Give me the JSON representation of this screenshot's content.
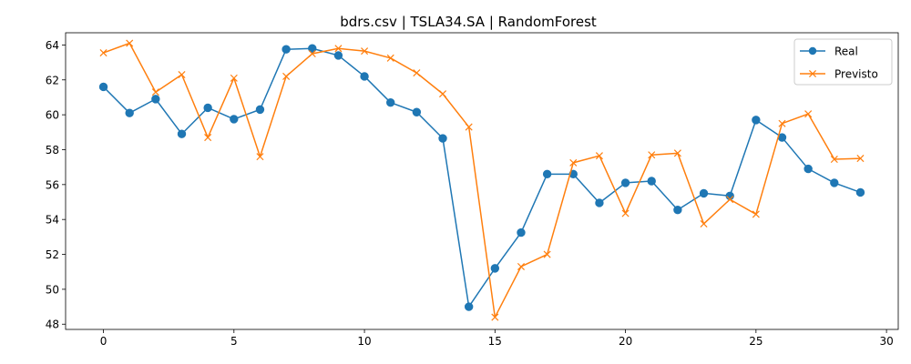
{
  "chart_data": {
    "type": "line",
    "title": "bdrs.csv | TSLA34.SA | RandomForest",
    "xlabel": "",
    "ylabel": "",
    "xlim": [
      -1.45,
      30.45
    ],
    "ylim": [
      47.7,
      64.7
    ],
    "xticks": [
      0,
      5,
      10,
      15,
      20,
      25,
      30
    ],
    "yticks": [
      48,
      50,
      52,
      54,
      56,
      58,
      60,
      62,
      64
    ],
    "grid": false,
    "legend_position": "top-right",
    "x": [
      0,
      1,
      2,
      3,
      4,
      5,
      6,
      7,
      8,
      9,
      10,
      11,
      12,
      13,
      14,
      15,
      16,
      17,
      18,
      19,
      20,
      21,
      22,
      23,
      24,
      25,
      26,
      27,
      28,
      29
    ],
    "series": [
      {
        "name": "Real",
        "color": "#1f77b4",
        "marker": "circle",
        "values": [
          61.6,
          60.1,
          60.9,
          58.9,
          60.4,
          59.75,
          60.3,
          63.75,
          63.8,
          63.4,
          62.2,
          60.7,
          60.15,
          58.65,
          49.0,
          51.2,
          53.25,
          56.6,
          56.6,
          54.95,
          56.1,
          56.2,
          54.55,
          55.5,
          55.35,
          59.7,
          58.7,
          56.9,
          56.1,
          55.55
        ]
      },
      {
        "name": "Previsto",
        "color": "#ff7f0e",
        "marker": "x",
        "values": [
          63.55,
          64.1,
          61.3,
          62.3,
          58.7,
          62.1,
          57.6,
          62.2,
          63.5,
          63.8,
          63.65,
          63.25,
          62.4,
          61.2,
          59.3,
          48.4,
          51.3,
          52.0,
          57.25,
          57.65,
          54.35,
          57.7,
          57.8,
          53.75,
          55.15,
          54.3,
          59.5,
          60.05,
          57.45,
          57.5
        ]
      }
    ]
  }
}
